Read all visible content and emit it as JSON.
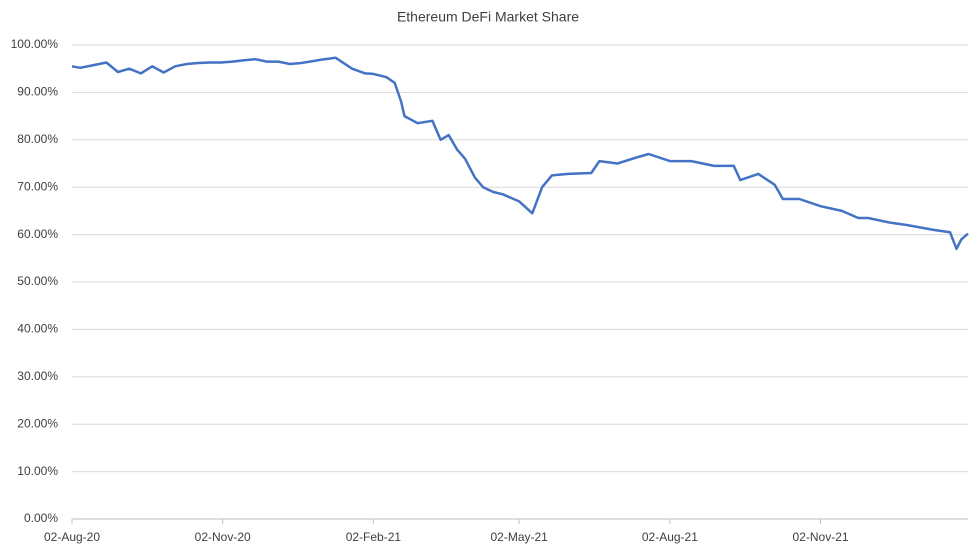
{
  "chart_data": {
    "type": "line",
    "title": "Ethereum DeFi Market Share",
    "x": [
      "2020-08-02",
      "2020-08-07",
      "2020-08-16",
      "2020-08-23",
      "2020-08-30",
      "2020-09-06",
      "2020-09-13",
      "2020-09-20",
      "2020-09-27",
      "2020-10-04",
      "2020-10-11",
      "2020-10-18",
      "2020-10-25",
      "2020-11-01",
      "2020-11-08",
      "2020-11-15",
      "2020-11-22",
      "2020-11-29",
      "2020-12-06",
      "2020-12-13",
      "2020-12-20",
      "2020-12-27",
      "2021-01-03",
      "2021-01-10",
      "2021-01-20",
      "2021-01-28",
      "2021-02-02",
      "2021-02-10",
      "2021-02-15",
      "2021-02-19",
      "2021-02-21",
      "2021-03-01",
      "2021-03-10",
      "2021-03-15",
      "2021-03-20",
      "2021-03-25",
      "2021-03-30",
      "2021-04-05",
      "2021-04-10",
      "2021-04-16",
      "2021-04-22",
      "2021-05-02",
      "2021-05-10",
      "2021-05-16",
      "2021-05-22",
      "2021-06-01",
      "2021-06-15",
      "2021-06-20",
      "2021-07-01",
      "2021-07-10",
      "2021-07-20",
      "2021-08-02",
      "2021-08-15",
      "2021-08-29",
      "2021-09-10",
      "2021-09-14",
      "2021-09-25",
      "2021-10-05",
      "2021-10-10",
      "2021-10-20",
      "2021-11-02",
      "2021-11-15",
      "2021-11-25",
      "2021-12-01",
      "2021-12-15",
      "2021-12-25",
      "2022-01-10",
      "2022-01-20",
      "2022-01-24",
      "2022-01-27",
      "2022-01-31"
    ],
    "series": [
      {
        "name": "Ethereum DeFi Market Share",
        "color": "#4472c4",
        "values": [
          95.5,
          95.2,
          95.8,
          96.3,
          94.3,
          95.0,
          94.0,
          95.5,
          94.2,
          95.5,
          96.0,
          96.2,
          96.3,
          96.3,
          96.5,
          96.8,
          97.0,
          96.5,
          96.5,
          96.0,
          96.2,
          96.6,
          97.0,
          97.3,
          95.0,
          94.0,
          93.9,
          93.2,
          92.0,
          88.0,
          85.0,
          83.5,
          84.0,
          80.0,
          81.0,
          78.0,
          76.0,
          72.0,
          70.0,
          69.0,
          68.5,
          67.0,
          64.5,
          70.0,
          72.5,
          72.8,
          73.0,
          75.5,
          75.0,
          76.0,
          77.0,
          75.5,
          75.5,
          74.5,
          74.5,
          71.5,
          72.8,
          70.5,
          67.5,
          67.5,
          66.0,
          65.0,
          63.5,
          63.5,
          62.5,
          62.0,
          61.0,
          60.5,
          57.0,
          59.0,
          60.2
        ]
      }
    ],
    "xlim": [
      "2020-08-02",
      "2022-01-31"
    ],
    "xticks": [
      {
        "value": "2020-08-02",
        "label": "02-Aug-20"
      },
      {
        "value": "2020-11-02",
        "label": "02-Nov-20"
      },
      {
        "value": "2021-02-02",
        "label": "02-Feb-21"
      },
      {
        "value": "2021-05-02",
        "label": "02-May-21"
      },
      {
        "value": "2021-08-02",
        "label": "02-Aug-21"
      },
      {
        "value": "2021-11-02",
        "label": "02-Nov-21"
      }
    ],
    "ylim": [
      0,
      100
    ],
    "yticks": [
      {
        "value": 0,
        "label": "0.00%"
      },
      {
        "value": 10,
        "label": "10.00%"
      },
      {
        "value": 20,
        "label": "20.00%"
      },
      {
        "value": 30,
        "label": "30.00%"
      },
      {
        "value": 40,
        "label": "40.00%"
      },
      {
        "value": 50,
        "label": "50.00%"
      },
      {
        "value": 60,
        "label": "60.00%"
      },
      {
        "value": 70,
        "label": "70.00%"
      },
      {
        "value": 80,
        "label": "80.00%"
      },
      {
        "value": 90,
        "label": "90.00%"
      },
      {
        "value": 100,
        "label": "100.00%"
      }
    ],
    "grid": true
  }
}
